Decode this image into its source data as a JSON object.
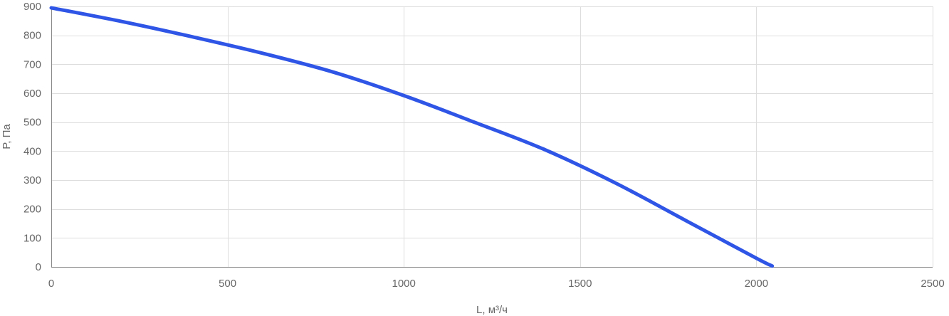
{
  "chart_data": {
    "type": "line",
    "xlabel": "L, м³/ч",
    "ylabel": "P, Па",
    "xlim": [
      0,
      2500
    ],
    "ylim": [
      0,
      900
    ],
    "x_ticks": [
      0,
      500,
      1000,
      1500,
      2000,
      2500
    ],
    "y_ticks": [
      0,
      100,
      200,
      300,
      400,
      500,
      600,
      700,
      800,
      900
    ],
    "grid": true,
    "series": [
      {
        "color": "#2f55e6",
        "points": [
          [
            0,
            895
          ],
          [
            200,
            848
          ],
          [
            400,
            795
          ],
          [
            600,
            738
          ],
          [
            800,
            673
          ],
          [
            1000,
            592
          ],
          [
            1200,
            500
          ],
          [
            1400,
            405
          ],
          [
            1600,
            290
          ],
          [
            1800,
            160
          ],
          [
            2000,
            30
          ],
          [
            2045,
            3
          ]
        ]
      }
    ]
  }
}
